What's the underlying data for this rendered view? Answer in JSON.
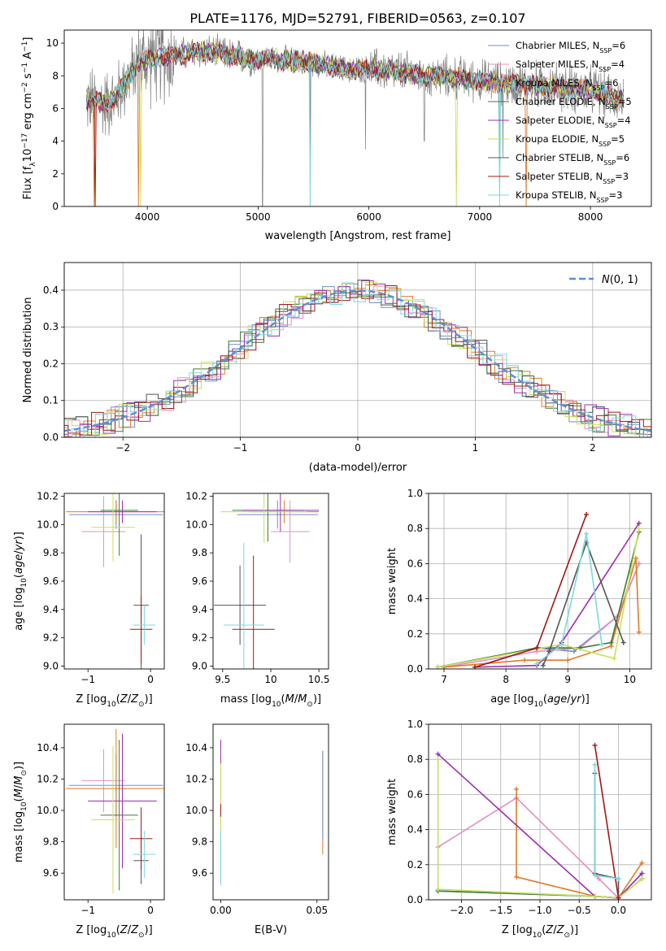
{
  "figure": {
    "title": "PLATE=1176, MJD=52791, FIBERID=0563, z=0.107"
  },
  "series_names": [
    "Chabrier MILES",
    "Salpeter MILES",
    "Kroupa MILES",
    "Chabrier ELODIE",
    "Salpeter ELODIE",
    "Kroupa ELODIE",
    "Chabrier STELIB",
    "Salpeter STELIB",
    "Kroupa STELIB"
  ],
  "series_nssp": [
    6,
    4,
    6,
    5,
    4,
    5,
    6,
    3,
    3
  ],
  "series_colors": [
    "#6a8fd0",
    "#e68fc0",
    "#e07b27",
    "#3f7a3a",
    "#9b2fae",
    "#c8e05a",
    "#555555",
    "#a01818",
    "#7fd8dc"
  ],
  "data_color": "#808080",
  "chart_data": [
    {
      "id": "spectrum",
      "type": "line",
      "xlabel": "wavelength [Angstrom, rest frame]",
      "ylabel": "Flux [f_λ10^-17 erg cm^-2 s^-1 A^-1]",
      "xlim": [
        3250,
        8550
      ],
      "ylim": [
        0,
        10.8
      ],
      "xticks": [
        4000,
        5000,
        6000,
        7000,
        8000
      ],
      "yticks": [
        0,
        2,
        4,
        6,
        8,
        10
      ],
      "legend_position": "upper right",
      "legend_entries": [
        "Chabrier MILES, N_SSP=6",
        "Salpeter MILES, N_SSP=4",
        "Kroupa MILES, N_SSP=6",
        "Chabrier ELODIE, N_SSP=5",
        "Salpeter ELODIE, N_SSP=4",
        "Kroupa ELODIE, N_SSP=5",
        "Chabrier STELIB, N_SSP=6",
        "Salpeter STELIB, N_SSP=3",
        "Kroupa STELIB, N_SSP=3"
      ],
      "continuum": {
        "x": [
          3450,
          3600,
          3700,
          3800,
          3900,
          4000,
          4200,
          4500,
          4800,
          5000,
          5200,
          5500,
          5800,
          6000,
          6200,
          6500,
          6800,
          7000,
          7300,
          7600,
          8000,
          8300
        ],
        "y": [
          6.5,
          6.3,
          6.5,
          7.6,
          8.6,
          9.0,
          9.2,
          9.5,
          9.2,
          9.0,
          9.0,
          8.8,
          8.4,
          8.4,
          8.3,
          8.0,
          7.9,
          7.7,
          7.5,
          7.4,
          7.1,
          6.6
        ]
      },
      "data_dips": [
        {
          "x": 5040,
          "y": 0.0
        },
        {
          "x": 5470,
          "y": 0.0
        },
        {
          "x": 5970,
          "y": 3.5
        },
        {
          "x": 6500,
          "y": 4.0
        },
        {
          "x": 7180,
          "y": 1.5
        },
        {
          "x": 7210,
          "y": 3.0
        }
      ],
      "model_dips": [
        {
          "x": 3520,
          "series": 2,
          "y": 0.0
        },
        {
          "x": 3530,
          "series": 7,
          "y": 0.0
        },
        {
          "x": 3920,
          "series": 2,
          "y": 0.0
        },
        {
          "x": 3940,
          "series": 5,
          "y": 0.0
        },
        {
          "x": 5470,
          "series": 8,
          "y": 0.0
        },
        {
          "x": 6790,
          "series": 5,
          "y": 0.0
        },
        {
          "x": 7180,
          "series": 8,
          "y": 0.0
        },
        {
          "x": 7420,
          "series": 2,
          "y": 0.0
        }
      ]
    },
    {
      "id": "residuals",
      "type": "line",
      "xlabel": "(data-model)/error",
      "ylabel": "Normed distribution",
      "xlim": [
        -2.5,
        2.5
      ],
      "ylim": [
        0,
        0.475
      ],
      "xticks": [
        -2,
        -1,
        0,
        1,
        2
      ],
      "yticks": [
        0.0,
        0.1,
        0.2,
        0.3,
        0.4
      ],
      "grid": true,
      "legend_position": "upper right",
      "legend_entries": [
        "N(0,1)"
      ],
      "gaussian": {
        "mu": 0,
        "sigma": 1,
        "color": "#5b8fd6"
      },
      "bin_width": 0.1
    },
    {
      "id": "age-vs-z",
      "type": "scatter",
      "xlabel": "Z [log10(Z/Z☉)]",
      "ylabel": "age  [log10(age/yr)]",
      "xlim": [
        -1.38,
        0.22
      ],
      "ylim": [
        8.98,
        10.22
      ],
      "xticks": [
        -1,
        0
      ],
      "yticks": [
        9.0,
        9.2,
        9.4,
        9.6,
        9.8,
        10.0,
        10.2
      ],
      "points": [
        {
          "x": -0.55,
          "y": 10.07,
          "xerr": 0.75,
          "yerr": 0.1,
          "series": 0
        },
        {
          "x": -0.75,
          "y": 9.95,
          "xerr": 0.35,
          "yerr": 0.25,
          "series": 1
        },
        {
          "x": -0.55,
          "y": 10.09,
          "xerr": 0.8,
          "yerr": 0.08,
          "series": 2
        },
        {
          "x": -0.5,
          "y": 10.1,
          "xerr": 0.3,
          "yerr": 0.32,
          "series": 3
        },
        {
          "x": -0.45,
          "y": 10.09,
          "xerr": 0.55,
          "yerr": 0.08,
          "series": 4
        },
        {
          "x": -0.6,
          "y": 9.98,
          "xerr": 0.35,
          "yerr": 0.24,
          "series": 5
        },
        {
          "x": -0.15,
          "y": 9.43,
          "xerr": 0.12,
          "yerr": 0.5,
          "series": 6
        },
        {
          "x": -0.15,
          "y": 9.26,
          "xerr": 0.18,
          "yerr": 0.24,
          "series": 7
        },
        {
          "x": -0.1,
          "y": 9.29,
          "xerr": 0.18,
          "yerr": 0.14,
          "series": 8
        }
      ]
    },
    {
      "id": "age-vs-mass",
      "type": "scatter",
      "xlabel": "mass [log10(M/M☉)]",
      "ylabel": "",
      "xlim": [
        9.4,
        10.6
      ],
      "ylim": [
        8.98,
        10.22
      ],
      "xticks": [
        9.5,
        10.0,
        10.5
      ],
      "yticks": [
        9.0,
        9.2,
        9.4,
        9.6,
        9.8,
        10.0,
        10.2
      ],
      "points": [
        {
          "x": 10.07,
          "y": 10.07,
          "xerr": 0.42,
          "yerr": 0.1,
          "series": 0
        },
        {
          "x": 10.2,
          "y": 9.95,
          "xerr": 0.2,
          "yerr": 0.22,
          "series": 1
        },
        {
          "x": 10.14,
          "y": 10.09,
          "xerr": 0.36,
          "yerr": 0.08,
          "series": 2
        },
        {
          "x": 9.97,
          "y": 10.1,
          "xerr": 0.37,
          "yerr": 0.22,
          "series": 3
        },
        {
          "x": 10.1,
          "y": 10.1,
          "xerr": 0.4,
          "yerr": 0.15,
          "series": 4
        },
        {
          "x": 9.93,
          "y": 10.09,
          "xerr": 0.45,
          "yerr": 0.22,
          "series": 5
        },
        {
          "x": 9.68,
          "y": 9.43,
          "xerr": 0.27,
          "yerr": 0.28,
          "series": 6
        },
        {
          "x": 9.82,
          "y": 9.26,
          "xerr": 0.22,
          "yerr": 0.52,
          "series": 7
        },
        {
          "x": 9.72,
          "y": 9.29,
          "xerr": 0.21,
          "yerr": 0.58,
          "series": 8
        }
      ]
    },
    {
      "id": "weight-vs-age",
      "type": "line",
      "xlabel": "age  [log10(age/yr)]",
      "ylabel": "mass weight",
      "xlim": [
        6.75,
        10.35
      ],
      "ylim": [
        0,
        1.0
      ],
      "xticks": [
        7,
        8,
        9,
        10
      ],
      "yticks": [
        0.0,
        0.2,
        0.4,
        0.6,
        0.8,
        1.0
      ],
      "grid": true,
      "series": [
        {
          "series": 0,
          "x": [
            6.9,
            8.5,
            9.1,
            9.8,
            10.15
          ],
          "y": [
            0.01,
            0.12,
            0.1,
            0.3,
            0.6
          ]
        },
        {
          "series": 1,
          "x": [
            7.0,
            8.5,
            9.2,
            9.8,
            10.15
          ],
          "y": [
            0.01,
            0.1,
            0.12,
            0.3,
            0.6
          ]
        },
        {
          "series": 2,
          "x": [
            7.0,
            8.3,
            9.0,
            9.7,
            10.1,
            10.15
          ],
          "y": [
            0.01,
            0.05,
            0.05,
            0.13,
            0.63,
            0.21
          ]
        },
        {
          "series": 3,
          "x": [
            6.9,
            8.5,
            9.2,
            9.7,
            10.15
          ],
          "y": [
            0.01,
            0.12,
            0.12,
            0.15,
            0.78
          ]
        },
        {
          "series": 4,
          "x": [
            7.5,
            8.5,
            8.9,
            10.15
          ],
          "y": [
            0.01,
            0.02,
            0.15,
            0.83
          ]
        },
        {
          "series": 5,
          "x": [
            6.9,
            8.9,
            9.75,
            10.15
          ],
          "y": [
            0.01,
            0.14,
            0.06,
            0.8
          ]
        },
        {
          "series": 6,
          "x": [
            8.6,
            8.7,
            9.3,
            9.9
          ],
          "y": [
            0.02,
            0.1,
            0.72,
            0.15
          ]
        },
        {
          "series": 7,
          "x": [
            7.5,
            8.5,
            9.3
          ],
          "y": [
            0.01,
            0.12,
            0.88
          ]
        },
        {
          "series": 8,
          "x": [
            8.5,
            8.9,
            9.3,
            9.55
          ],
          "y": [
            0.03,
            0.14,
            0.77,
            0.14
          ]
        }
      ]
    },
    {
      "id": "mass-vs-z",
      "type": "scatter",
      "xlabel": "Z [log10(Z/Z☉)]",
      "ylabel": "mass [log10(M/M☉)]",
      "xlim": [
        -1.38,
        0.22
      ],
      "ylim": [
        9.43,
        10.55
      ],
      "xticks": [
        -1,
        0
      ],
      "yticks": [
        9.6,
        9.8,
        10.0,
        10.2,
        10.4
      ],
      "points": [
        {
          "x": -0.55,
          "y": 10.16,
          "xerr": 0.75,
          "yerr": 0.2,
          "series": 0
        },
        {
          "x": -0.75,
          "y": 10.19,
          "xerr": 0.35,
          "yerr": 0.2,
          "series": 1
        },
        {
          "x": -0.55,
          "y": 10.14,
          "xerr": 0.8,
          "yerr": 0.38,
          "series": 2
        },
        {
          "x": -0.5,
          "y": 9.97,
          "xerr": 0.3,
          "yerr": 0.48,
          "series": 3
        },
        {
          "x": -0.45,
          "y": 10.06,
          "xerr": 0.55,
          "yerr": 0.43,
          "series": 4
        },
        {
          "x": -0.6,
          "y": 9.94,
          "xerr": 0.35,
          "yerr": 0.47,
          "series": 5
        },
        {
          "x": -0.15,
          "y": 9.68,
          "xerr": 0.12,
          "yerr": 0.15,
          "series": 6
        },
        {
          "x": -0.15,
          "y": 9.82,
          "xerr": 0.18,
          "yerr": 0.2,
          "series": 7
        },
        {
          "x": -0.1,
          "y": 9.72,
          "xerr": 0.18,
          "yerr": 0.15,
          "series": 8
        }
      ]
    },
    {
      "id": "mass-vs-ebv",
      "type": "scatter",
      "xlabel": "E(B-V)",
      "ylabel": "",
      "xlim": [
        -0.004,
        0.056
      ],
      "ylim": [
        9.43,
        10.55
      ],
      "xticks": [
        0.0,
        0.05
      ],
      "xtick_labels": [
        "0.00",
        "0.05"
      ],
      "yticks": [
        9.6,
        9.8,
        10.0,
        10.2,
        10.4
      ],
      "points": [
        {
          "x": 0.0,
          "y": 10.0,
          "yerr": 0.45,
          "series": 4
        },
        {
          "x": 0.0,
          "y": 9.95,
          "yerr": 0.35,
          "series": 5
        },
        {
          "x": 0.0,
          "y": 9.7,
          "yerr": 0.15,
          "series": 6
        },
        {
          "x": 0.0,
          "y": 10.0,
          "yerr": 0.04,
          "series": 7
        },
        {
          "x": 0.0,
          "y": 9.7,
          "yerr": 0.18,
          "series": 8
        },
        {
          "x": 0.053,
          "y": 10.05,
          "yerr": 0.33,
          "series": 2
        },
        {
          "x": 0.053,
          "y": 10.1,
          "yerr": 0.28,
          "series": 0
        }
      ]
    },
    {
      "id": "weight-vs-z",
      "type": "line",
      "xlabel": "Z [log10(Z/Z☉)]",
      "ylabel": "mass weight",
      "xlim": [
        -2.42,
        0.42
      ],
      "ylim": [
        0,
        1.0
      ],
      "xticks": [
        -2.0,
        -1.5,
        -1.0,
        -0.5,
        0.0
      ],
      "xtick_labels": [
        "−2.0",
        "−1.5",
        "−1.0",
        "−0.5",
        "0.0"
      ],
      "yticks": [
        0.0,
        0.2,
        0.4,
        0.6,
        0.8,
        1.0
      ],
      "grid": true,
      "series": [
        {
          "series": 0,
          "x": [
            -2.3,
            -0.3,
            0.0,
            0.3
          ],
          "y": [
            0.05,
            0.02,
            0.01,
            0.15
          ]
        },
        {
          "series": 1,
          "x": [
            -2.3,
            -1.3,
            -0.25,
            0.0
          ],
          "y": [
            0.3,
            0.58,
            0.12,
            0.01
          ]
        },
        {
          "series": 2,
          "x": [
            -1.3,
            -1.3,
            -0.3,
            0.0,
            0.3
          ],
          "y": [
            0.63,
            0.13,
            0.02,
            0.01,
            0.21
          ]
        },
        {
          "series": 3,
          "x": [
            -2.3,
            -0.3,
            0.0,
            0.3
          ],
          "y": [
            0.05,
            0.02,
            0.01,
            0.12
          ]
        },
        {
          "series": 4,
          "x": [
            -2.3,
            -0.3,
            0.0,
            0.3
          ],
          "y": [
            0.83,
            0.02,
            0.01,
            0.15
          ]
        },
        {
          "series": 5,
          "x": [
            -2.3,
            -2.3,
            -0.3,
            0.0,
            0.3
          ],
          "y": [
            0.8,
            0.06,
            0.02,
            0.01,
            0.12
          ]
        },
        {
          "series": 6,
          "x": [
            -0.3,
            -0.3,
            0.0,
            0.0
          ],
          "y": [
            0.72,
            0.15,
            0.12,
            0.01
          ]
        },
        {
          "series": 7,
          "x": [
            -0.3,
            0.0
          ],
          "y": [
            0.88,
            0.01
          ]
        },
        {
          "series": 8,
          "x": [
            -0.3,
            -0.3,
            0.0
          ],
          "y": [
            0.77,
            0.14,
            0.12
          ]
        }
      ]
    }
  ]
}
